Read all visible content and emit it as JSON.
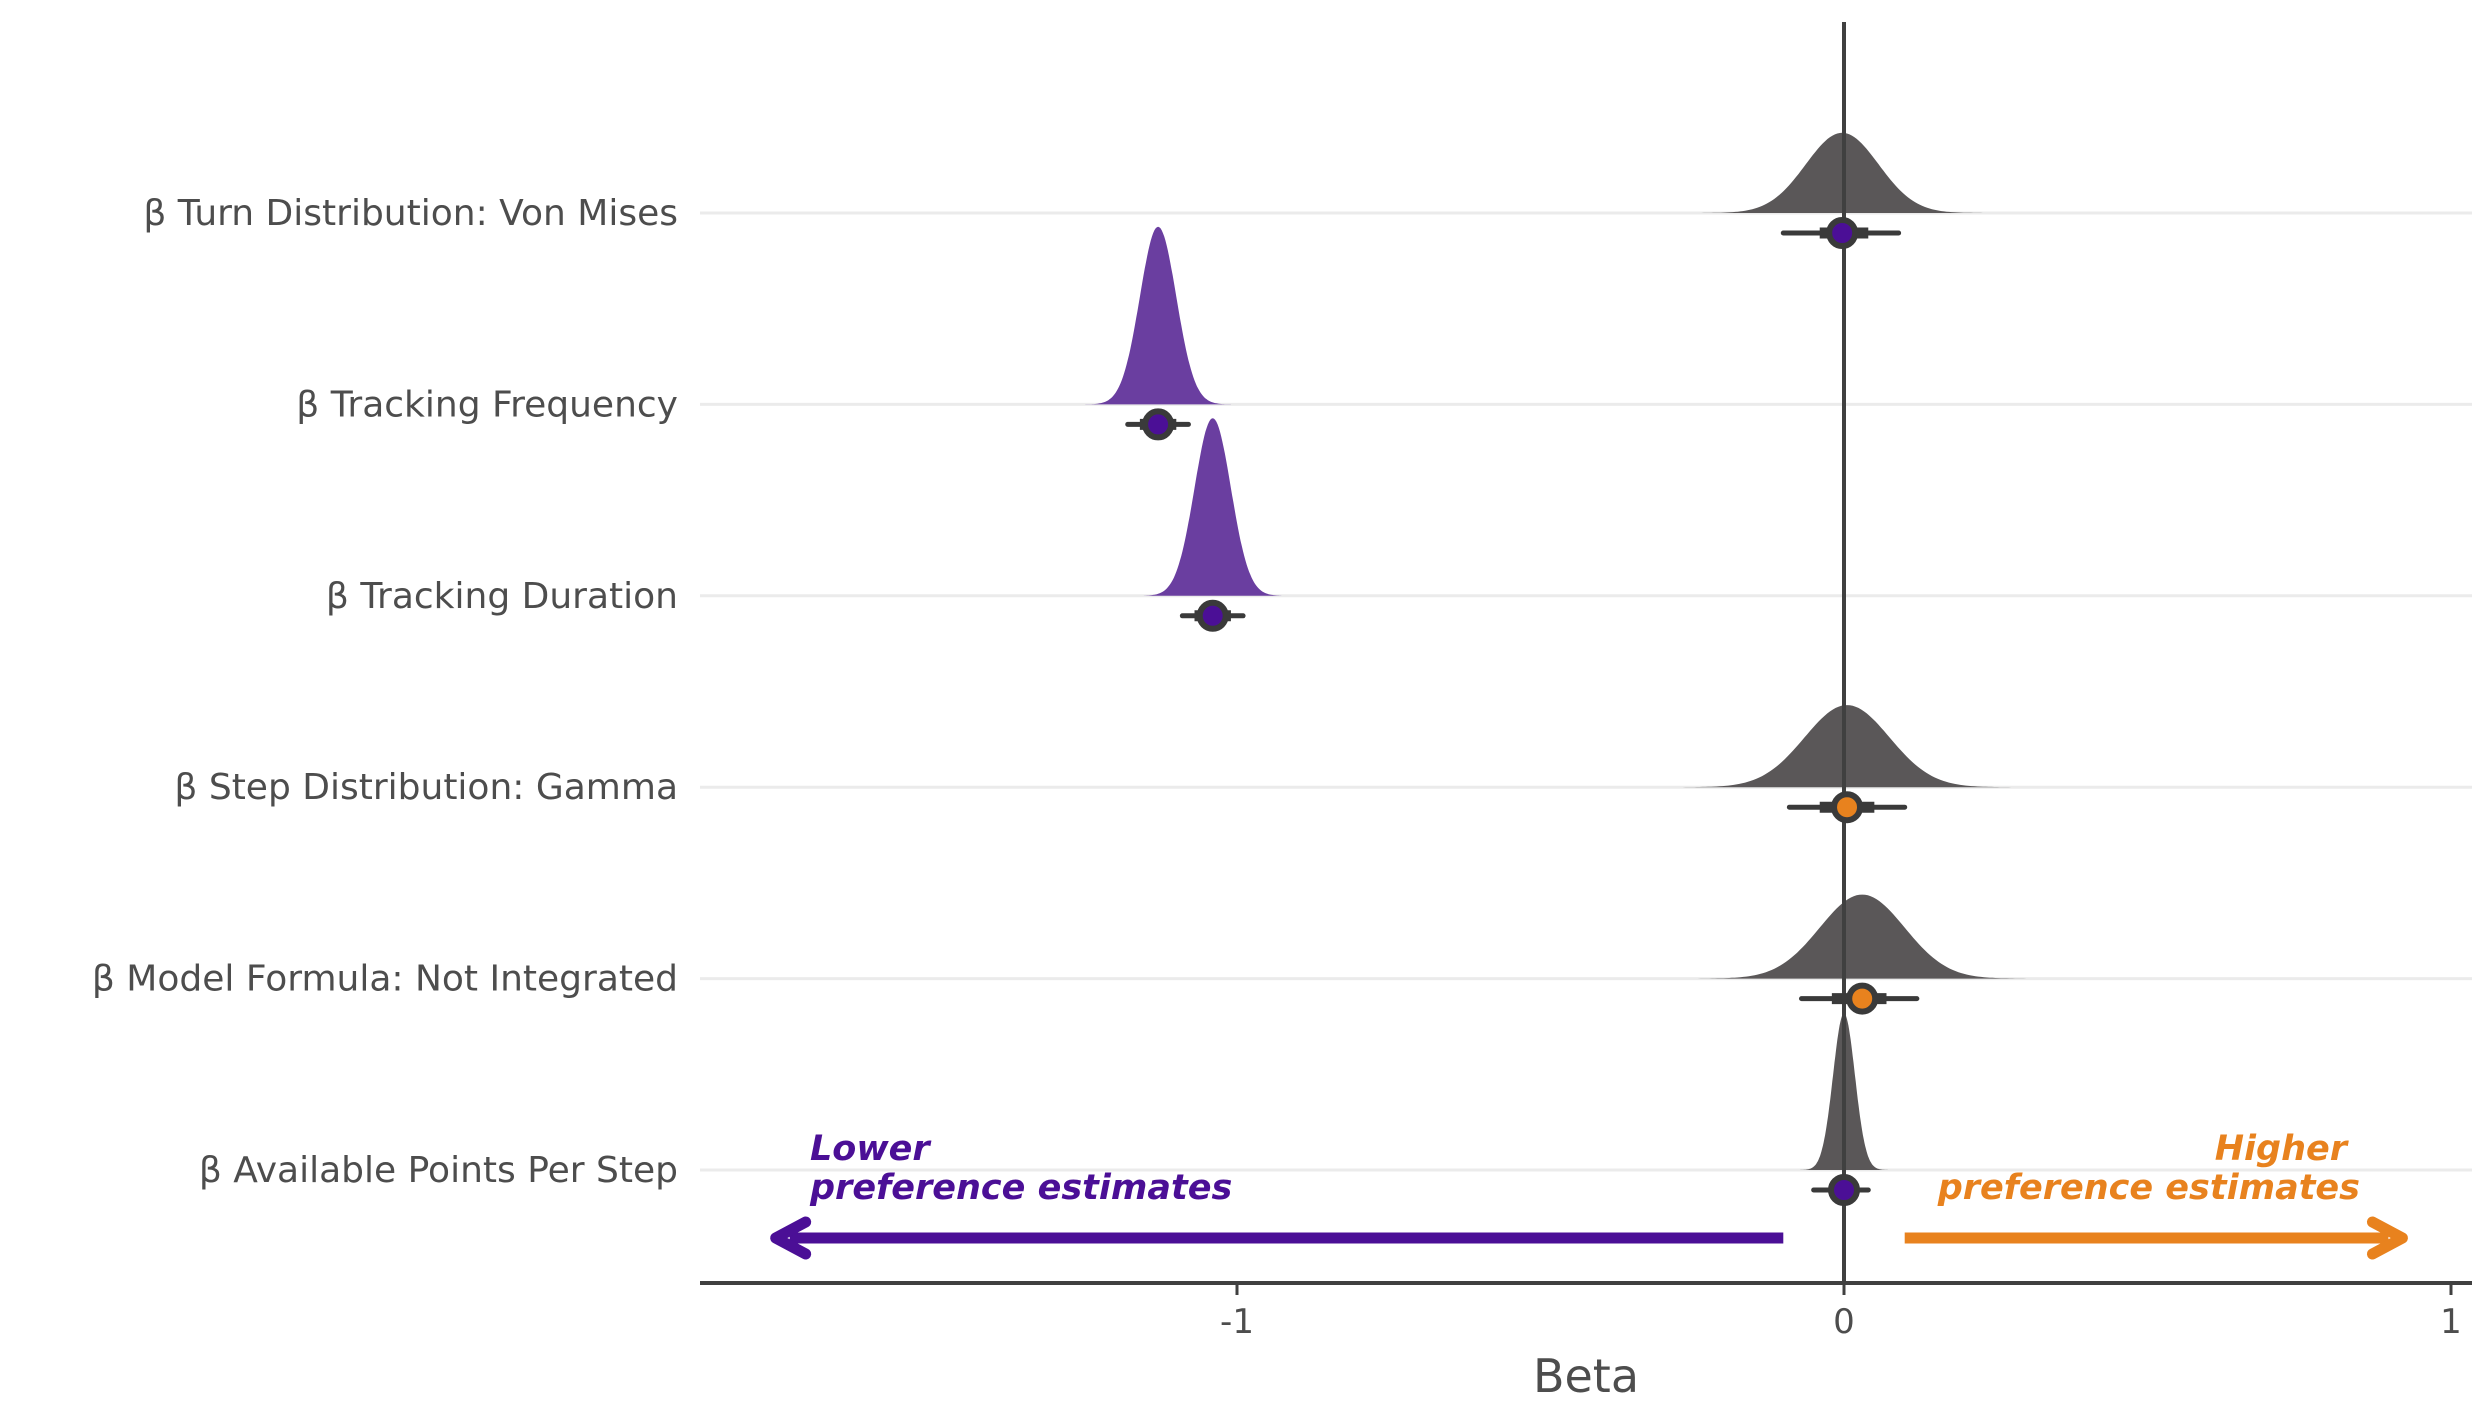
{
  "chart_data": {
    "type": "ridgeline",
    "xlabel": "Beta",
    "xlim": [
      -1.88,
      1.03
    ],
    "x_ticks": [
      -1,
      0,
      1
    ],
    "x_tick_labels": [
      "-1",
      "0",
      "1"
    ],
    "zero_line": 0,
    "grid": "horizontal major lines at each category",
    "colors": {
      "lower": "#4b0f96",
      "lower_fill": "#6a3ea0",
      "higher": "#e8821e",
      "neutral": "#5a5758",
      "text": "#4d4d4d",
      "axis": "#404040",
      "grid": "#ebebeb"
    },
    "rows": [
      {
        "label": "β Turn Distribution: Von Mises",
        "mean": -0.003,
        "sd": 0.06,
        "ci66": [
          -0.04,
          0.04
        ],
        "ci95": [
          -0.1,
          0.09
        ],
        "direction": "lower",
        "fill": "neutral",
        "peak_ratio": 0.42
      },
      {
        "label": "β Tracking Frequency",
        "mean": -1.13,
        "sd": 0.03,
        "ci66": [
          -1.16,
          -1.1
        ],
        "ci95": [
          -1.18,
          -1.08
        ],
        "direction": "lower",
        "fill": "lower_fill",
        "peak_ratio": 0.93
      },
      {
        "label": "β Tracking Duration",
        "mean": -1.04,
        "sd": 0.03,
        "ci66": [
          -1.07,
          -1.01
        ],
        "ci95": [
          -1.09,
          -0.99
        ],
        "direction": "lower",
        "fill": "lower_fill",
        "peak_ratio": 0.93
      },
      {
        "label": "β Step Distribution: Gamma",
        "mean": 0.005,
        "sd": 0.07,
        "ci66": [
          -0.04,
          0.05
        ],
        "ci95": [
          -0.09,
          0.1
        ],
        "direction": "higher",
        "fill": "neutral",
        "peak_ratio": 0.43
      },
      {
        "label": "β Model Formula: Not Integrated",
        "mean": 0.03,
        "sd": 0.07,
        "ci66": [
          -0.02,
          0.07
        ],
        "ci95": [
          -0.07,
          0.12
        ],
        "direction": "higher",
        "fill": "neutral",
        "peak_ratio": 0.44
      },
      {
        "label": "β Available Points Per Step",
        "mean": 0.0,
        "sd": 0.018,
        "ci66": [
          -0.02,
          0.02
        ],
        "ci95": [
          -0.05,
          0.04
        ],
        "direction": "lower",
        "fill": "neutral",
        "peak_ratio": 0.82
      }
    ],
    "annotations": {
      "lower_line1": "Lower",
      "lower_line2": "preference estimates",
      "higher_line1": "Higher",
      "higher_line2": "preference estimates",
      "lower_arrow": [
        -0.1,
        -1.76
      ],
      "higher_arrow": [
        0.1,
        0.92
      ]
    }
  }
}
